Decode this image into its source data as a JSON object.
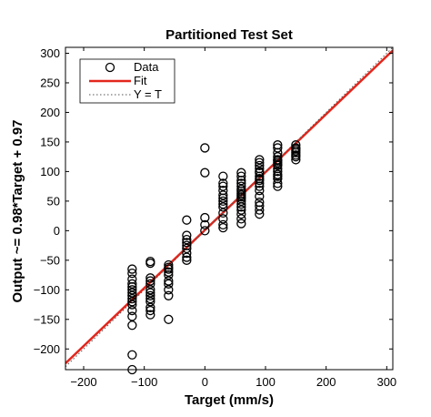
{
  "chart_data": {
    "type": "scatter",
    "title": "Partitioned Test Set",
    "xlabel": "Target (mm/s)",
    "ylabel": "Output ~= 0.98*Target + 0.97",
    "xlim": [
      -230,
      310
    ],
    "ylim": [
      -235,
      310
    ],
    "xticks": [
      -200,
      -100,
      0,
      100,
      200,
      300
    ],
    "xtick_labels": [
      "−200",
      "−100",
      "0",
      "100",
      "200",
      "300"
    ],
    "yticks": [
      -200,
      -150,
      -100,
      -50,
      0,
      50,
      100,
      150,
      200,
      250,
      300
    ],
    "ytick_labels": [
      "−200",
      "−150",
      "−100",
      "−50",
      "0",
      "50",
      "100",
      "150",
      "200",
      "250",
      "300"
    ],
    "grid": false,
    "legend_position": "top-left",
    "series": [
      {
        "name": "Data",
        "kind": "markers",
        "marker": "circle-open",
        "color": "#000000",
        "x": [
          -120,
          -120,
          -120,
          -120,
          -120,
          -120,
          -120,
          -120,
          -120,
          -120,
          -120,
          -120,
          -120,
          -120,
          -120,
          -120,
          -90,
          -90,
          -90,
          -90,
          -90,
          -90,
          -90,
          -90,
          -90,
          -90,
          -90,
          -90,
          -90,
          -60,
          -60,
          -60,
          -60,
          -60,
          -60,
          -60,
          -60,
          -60,
          -60,
          -30,
          -30,
          -30,
          -30,
          -30,
          -30,
          -30,
          -30,
          -30,
          0,
          0,
          0,
          0,
          0,
          30,
          30,
          30,
          30,
          30,
          30,
          30,
          30,
          30,
          30,
          30,
          30,
          30,
          60,
          60,
          60,
          60,
          60,
          60,
          60,
          60,
          60,
          60,
          60,
          60,
          60,
          60,
          60,
          60,
          60,
          60,
          90,
          90,
          90,
          90,
          90,
          90,
          90,
          90,
          90,
          90,
          90,
          90,
          90,
          90,
          90,
          90,
          90,
          120,
          120,
          120,
          120,
          120,
          120,
          120,
          120,
          120,
          120,
          120,
          120,
          120,
          120,
          120,
          120,
          150,
          150,
          150,
          150,
          150,
          150,
          150,
          150
        ],
        "y": [
          -65,
          -72,
          -82,
          -90,
          -95,
          -100,
          -105,
          -110,
          -115,
          -120,
          -125,
          -135,
          -145,
          -160,
          -210,
          -235,
          -52,
          -55,
          -80,
          -85,
          -90,
          -100,
          -105,
          -110,
          -115,
          -120,
          -130,
          -135,
          -142,
          -58,
          -62,
          -65,
          -70,
          -75,
          -85,
          -90,
          -100,
          -110,
          -150,
          18,
          -8,
          -15,
          -20,
          -25,
          -30,
          -38,
          -45,
          -50,
          140,
          98,
          22,
          10,
          0,
          92,
          80,
          75,
          68,
          60,
          55,
          50,
          45,
          40,
          30,
          20,
          10,
          5,
          98,
          92,
          85,
          80,
          75,
          70,
          67,
          63,
          60,
          57,
          54,
          50,
          45,
          40,
          35,
          28,
          20,
          12,
          120,
          115,
          110,
          105,
          100,
          98,
          92,
          88,
          85,
          80,
          75,
          68,
          58,
          48,
          42,
          35,
          28,
          145,
          140,
          132,
          125,
          120,
          118,
          115,
          112,
          110,
          105,
          100,
          95,
          92,
          88,
          80,
          75,
          145,
          140,
          138,
          135,
          132,
          128,
          125,
          120
        ]
      },
      {
        "name": "Fit",
        "kind": "line",
        "color": "#e3261c",
        "slope": 0.98,
        "intercept": 0.97
      },
      {
        "name": "Y = T",
        "kind": "line-dotted",
        "color": "#555555",
        "slope": 1,
        "intercept": 0
      }
    ]
  }
}
